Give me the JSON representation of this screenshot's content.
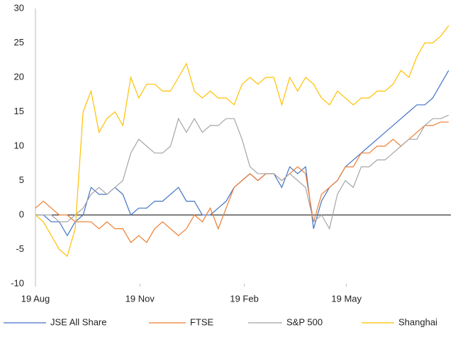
{
  "chart_data": {
    "type": "line",
    "x": [
      0,
      7,
      14,
      21,
      28,
      35,
      42,
      49,
      56,
      63,
      70,
      77,
      84,
      91,
      98,
      105,
      112,
      119,
      126,
      133,
      140,
      147,
      154,
      161,
      168,
      175,
      182,
      189,
      196,
      203,
      210,
      217,
      224,
      231,
      238,
      245,
      252,
      259,
      266,
      273,
      280,
      287,
      294,
      301,
      308,
      315,
      322,
      329,
      336,
      343,
      350,
      357,
      364
    ],
    "xlim": [
      0,
      366
    ],
    "xticks": [
      {
        "value": 0,
        "label": "19 Aug"
      },
      {
        "value": 92,
        "label": "19 Nov"
      },
      {
        "value": 184,
        "label": "19 Feb"
      },
      {
        "value": 274,
        "label": "19 May"
      }
    ],
    "ylim": [
      -10,
      30
    ],
    "yticks": [
      -10,
      -5,
      0,
      5,
      10,
      15,
      20,
      25,
      30
    ],
    "grid": false,
    "legend": "bottom",
    "series": [
      {
        "name": "JSE All Share",
        "color": "#4472c4",
        "values": [
          0,
          0,
          -1,
          -1,
          -3,
          -1,
          0,
          4,
          3,
          3,
          4,
          3,
          0,
          1,
          1,
          2,
          2,
          3,
          4,
          2,
          2,
          0,
          0,
          1,
          2,
          4,
          5,
          6,
          5,
          6,
          6,
          4,
          7,
          6,
          7,
          -2,
          2,
          4,
          5,
          7,
          8,
          9,
          10,
          11,
          12,
          13,
          14,
          15,
          16,
          16,
          17,
          19,
          21
        ]
      },
      {
        "name": "FTSE",
        "color": "#ed7d31",
        "values": [
          1,
          2,
          1,
          0,
          0,
          -1,
          -1,
          -1,
          -2,
          -1,
          -2,
          -2,
          -4,
          -3,
          -4,
          -2,
          -1,
          -2,
          -3,
          -2,
          0,
          -1,
          1,
          -2,
          1,
          4,
          5,
          6,
          5,
          6,
          6,
          5,
          6,
          7,
          6,
          -1,
          3,
          4,
          5,
          7,
          7,
          9,
          9,
          10,
          10,
          11,
          10,
          11,
          12,
          13,
          13,
          13.5,
          13.5
        ]
      },
      {
        "name": "S&P 500",
        "color": "#a5a5a5",
        "values": [
          0,
          0,
          0,
          -1,
          -1,
          0,
          1,
          3,
          4,
          3,
          4,
          5,
          9,
          11,
          10,
          9,
          9,
          10,
          14,
          12,
          14,
          12,
          13,
          13,
          14,
          14,
          11,
          7,
          6,
          6,
          6,
          5,
          6,
          5,
          4,
          -1,
          0,
          -2,
          3,
          5,
          4,
          7,
          7,
          8,
          8,
          9,
          10,
          11,
          11,
          13,
          14,
          14,
          14.5
        ]
      },
      {
        "name": "Shanghai",
        "color": "#ffc000",
        "values": [
          0,
          -1,
          -3,
          -5,
          -6,
          -2,
          15,
          18,
          12,
          14,
          15,
          13,
          20,
          17,
          19,
          19,
          18,
          18,
          20,
          22,
          18,
          17,
          18,
          17,
          17,
          16,
          19,
          20,
          19,
          20,
          20,
          16,
          20,
          18,
          20,
          19,
          17,
          16,
          18,
          17,
          16,
          17,
          17,
          18,
          18,
          19,
          21,
          20,
          23,
          25,
          25,
          26,
          27.5
        ]
      }
    ]
  }
}
